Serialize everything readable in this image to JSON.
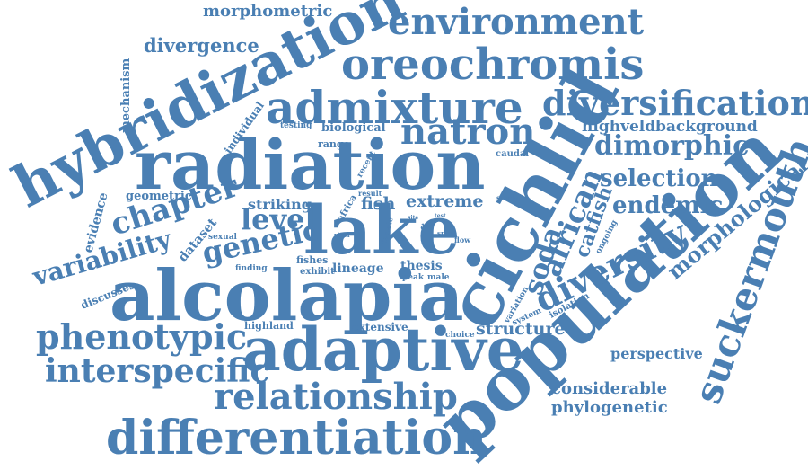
{
  "accent": "#4a7fb3",
  "words": [
    {
      "text": "hybridization"
    },
    {
      "text": "radiation"
    },
    {
      "text": "lake"
    },
    {
      "text": "cichlid"
    },
    {
      "text": "alcolapia"
    },
    {
      "text": "population"
    },
    {
      "text": "adaptive"
    },
    {
      "text": "admixture"
    },
    {
      "text": "oreochromis"
    },
    {
      "text": "environment"
    },
    {
      "text": "diversification"
    },
    {
      "text": "differentiation"
    },
    {
      "text": "relationship"
    },
    {
      "text": "interspecific"
    },
    {
      "text": "phenotypic"
    },
    {
      "text": "suckermouth"
    },
    {
      "text": "natron"
    },
    {
      "text": "chapter"
    },
    {
      "text": "variability"
    },
    {
      "text": "diversity"
    },
    {
      "text": "african"
    },
    {
      "text": "soda"
    },
    {
      "text": "genetic"
    },
    {
      "text": "level"
    },
    {
      "text": "dimorphic"
    },
    {
      "text": "selection"
    },
    {
      "text": "endemic"
    },
    {
      "text": "morphological"
    },
    {
      "text": "catfish"
    },
    {
      "text": "divergence"
    },
    {
      "text": "morphometric"
    },
    {
      "text": "highveld"
    },
    {
      "text": "background"
    },
    {
      "text": "structure"
    },
    {
      "text": "considerable"
    },
    {
      "text": "phylogenetic"
    },
    {
      "text": "perspective"
    },
    {
      "text": "extreme"
    },
    {
      "text": "fish"
    },
    {
      "text": "striking"
    },
    {
      "text": "mechanism"
    },
    {
      "text": "evidence"
    },
    {
      "text": "geometric"
    },
    {
      "text": "dataset"
    },
    {
      "text": "discusses"
    },
    {
      "text": "individual"
    },
    {
      "text": "biological"
    },
    {
      "text": "range"
    },
    {
      "text": "testing"
    },
    {
      "text": "caudal"
    },
    {
      "text": "recent"
    },
    {
      "text": "result"
    },
    {
      "text": "study"
    },
    {
      "text": "africa"
    },
    {
      "text": "data"
    },
    {
      "text": "female"
    },
    {
      "text": "site"
    },
    {
      "text": "test"
    },
    {
      "text": "snps"
    },
    {
      "text": "river"
    },
    {
      "text": "sexual"
    },
    {
      "text": "flow"
    },
    {
      "text": "ongoing"
    },
    {
      "text": "finding"
    },
    {
      "text": "fishes"
    },
    {
      "text": "exhibit"
    },
    {
      "text": "lineage"
    },
    {
      "text": "thesis"
    },
    {
      "text": "peak"
    },
    {
      "text": "male"
    },
    {
      "text": "variation"
    },
    {
      "text": "system"
    },
    {
      "text": "isolation"
    },
    {
      "text": "highland"
    },
    {
      "text": "extensive"
    },
    {
      "text": "choice"
    }
  ]
}
